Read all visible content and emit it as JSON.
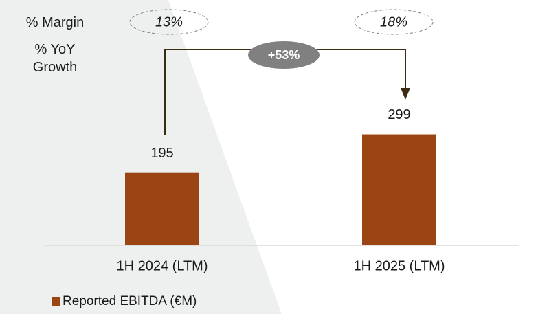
{
  "chart_data": {
    "type": "bar",
    "categories": [
      "1H 2024 (LTM)",
      "1H 2025 (LTM)"
    ],
    "series": [
      {
        "name": "Reported EBITDA (€M)",
        "color": "#9b4515",
        "values": [
          195,
          299
        ]
      }
    ],
    "margin": {
      "label": "% Margin",
      "values": [
        13,
        18
      ],
      "value_labels": [
        "13%",
        "18%"
      ]
    },
    "growth": {
      "label": "% YoY Growth",
      "value": 53,
      "value_label": "+53%"
    }
  }
}
